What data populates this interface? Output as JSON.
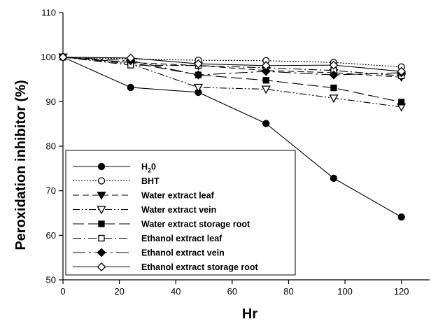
{
  "chart_data": {
    "type": "line",
    "xlabel": "Hr",
    "ylabel": "Peroxidation inhibitor (%)",
    "xlim": [
      0,
      130
    ],
    "ylim": [
      50,
      110
    ],
    "x_ticks": [
      "0",
      "20",
      "40",
      "60",
      "80",
      "100",
      "120"
    ],
    "y_ticks": [
      "50",
      "60",
      "70",
      "80",
      "90",
      "100",
      "110"
    ],
    "grid": false,
    "legend_position": "lower-left",
    "series": [
      {
        "name": "H20",
        "name_main": "H",
        "name_sub1": "2",
        "name_rest": "0",
        "marker": "circle",
        "fill": "black",
        "dash": "solid",
        "x": [
          0,
          24,
          48,
          72,
          96,
          120
        ],
        "y": [
          100,
          93.2,
          92.1,
          85.1,
          72.8,
          64.1
        ]
      },
      {
        "name": "BHT",
        "marker": "circle",
        "fill": "white",
        "dash": "dotted",
        "x": [
          0,
          24,
          48,
          72,
          96,
          120
        ],
        "y": [
          100,
          99.6,
          99.3,
          99.2,
          98.8,
          97.8
        ]
      },
      {
        "name": "Water extract leaf",
        "marker": "triangle-down",
        "fill": "black",
        "dash": "dashed",
        "x": [
          0,
          24,
          48,
          72,
          96,
          120
        ],
        "y": [
          100,
          98.8,
          98.1,
          97.0,
          96.5,
          95.5
        ]
      },
      {
        "name": "Water extract vein",
        "marker": "triangle-down",
        "fill": "white",
        "dash": "dash-dot-dot",
        "x": [
          0,
          24,
          48,
          72,
          96,
          120
        ],
        "y": [
          100,
          98.5,
          93.2,
          92.8,
          90.8,
          88.8
        ]
      },
      {
        "name": "Water extract storage root",
        "marker": "square",
        "fill": "black",
        "dash": "long-dash",
        "x": [
          0,
          24,
          48,
          72,
          96,
          120
        ],
        "y": [
          100,
          98.8,
          96.0,
          94.8,
          93.1,
          89.9
        ]
      },
      {
        "name": "Ethanol extract leaf",
        "marker": "square",
        "fill": "white",
        "dash": "dash-dot",
        "x": [
          0,
          24,
          48,
          72,
          96,
          120
        ],
        "y": [
          100,
          98.2,
          98.1,
          97.6,
          97.0,
          95.8
        ]
      },
      {
        "name": "Ethanol extract vein",
        "marker": "diamond",
        "fill": "black",
        "dash": "dash-dot-long",
        "x": [
          0,
          24,
          48,
          72,
          96,
          120
        ],
        "y": [
          100,
          99.2,
          96.0,
          96.8,
          96.0,
          96.5
        ]
      },
      {
        "name": "Ethanol extract storage root",
        "marker": "diamond",
        "fill": "white",
        "dash": "solid",
        "x": [
          0,
          24,
          48,
          72,
          96,
          120
        ],
        "y": [
          100,
          99.8,
          98.5,
          98.1,
          98.2,
          96.8
        ]
      }
    ]
  }
}
